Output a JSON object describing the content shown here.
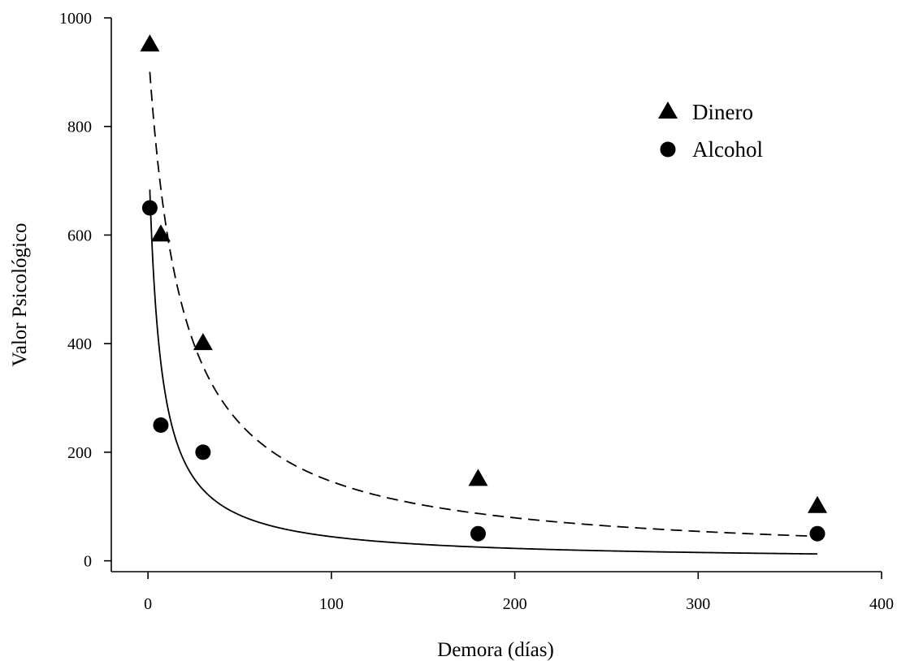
{
  "chart_data": {
    "type": "scatter",
    "title": "",
    "xlabel": "Demora (días)",
    "ylabel": "Valor Psicológico",
    "xlim": [
      -20,
      400
    ],
    "ylim": [
      -20,
      1000
    ],
    "xticks": [
      0,
      100,
      200,
      300,
      400
    ],
    "yticks": [
      0,
      200,
      400,
      600,
      800,
      1000
    ],
    "xtick_labels": [
      "0",
      "100",
      "200",
      "300",
      "400"
    ],
    "ytick_labels": [
      "0",
      "200",
      "400",
      "600",
      "800",
      "1000"
    ],
    "grid": false,
    "legend_position": "top-right",
    "series": [
      {
        "name": "Dinero",
        "marker": "triangle",
        "line_style": "dashed",
        "color": "#000000",
        "x": [
          1,
          7,
          30,
          180,
          365
        ],
        "y": [
          950,
          600,
          400,
          150,
          100
        ],
        "fit": {
          "model": "hyperbolic",
          "A": 950,
          "k": 0.055
        }
      },
      {
        "name": "Alcohol",
        "marker": "circle",
        "line_style": "solid",
        "color": "#000000",
        "x": [
          1,
          7,
          30,
          180,
          365
        ],
        "y": [
          650,
          250,
          200,
          50,
          50
        ],
        "fit": {
          "model": "hyperbolic",
          "A": 800,
          "k": 0.17
        }
      }
    ]
  }
}
